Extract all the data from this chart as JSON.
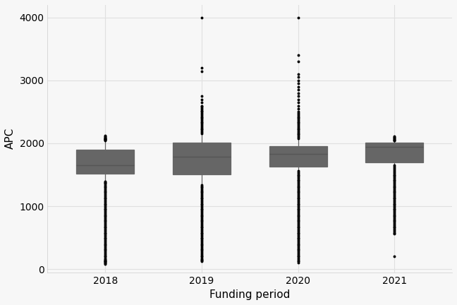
{
  "years": [
    "2018",
    "2019",
    "2020",
    "2021"
  ],
  "xlabel": "Funding period",
  "ylabel": "APC",
  "ylim": [
    -50,
    4200
  ],
  "yticks": [
    0,
    1000,
    2000,
    3000,
    4000
  ],
  "background_color": "#f7f7f7",
  "grid_color": "#e0e0e0",
  "box_color": "white",
  "box_edge_color": "#666666",
  "median_color": "#555555",
  "whisker_color": "#666666",
  "outlier_color": "black",
  "outlier_size": 1.8,
  "box_width": 0.6,
  "boxes": {
    "2018": {
      "q1": 1520,
      "median": 1655,
      "q3": 1900,
      "whislo": 1415,
      "whishi": 2050,
      "outliers": [
        1395,
        1385,
        1370,
        1355,
        1340,
        1320,
        1300,
        1280,
        1260,
        1240,
        1220,
        1200,
        1180,
        1160,
        1140,
        1120,
        1100,
        1080,
        1060,
        1040,
        1020,
        1000,
        980,
        960,
        940,
        920,
        900,
        880,
        860,
        840,
        820,
        800,
        780,
        760,
        740,
        720,
        700,
        680,
        660,
        640,
        620,
        600,
        580,
        560,
        540,
        520,
        500,
        480,
        460,
        440,
        420,
        400,
        380,
        360,
        340,
        320,
        300,
        280,
        260,
        240,
        220,
        200,
        180,
        160,
        150,
        140,
        130,
        120,
        110,
        100,
        90,
        80,
        2055,
        2060,
        2065,
        2070,
        2075,
        2080,
        2090,
        2100,
        2110,
        2120,
        2050
      ]
    },
    "2019": {
      "q1": 1510,
      "median": 1790,
      "q3": 2010,
      "whislo": 1360,
      "whishi": 2150,
      "outliers": [
        1340,
        1320,
        1300,
        1280,
        1260,
        1240,
        1220,
        1200,
        1180,
        1160,
        1140,
        1120,
        1100,
        1080,
        1060,
        1040,
        1020,
        1000,
        980,
        960,
        940,
        920,
        900,
        880,
        860,
        840,
        820,
        800,
        780,
        760,
        740,
        720,
        700,
        680,
        660,
        640,
        620,
        600,
        580,
        560,
        540,
        520,
        500,
        480,
        460,
        440,
        420,
        400,
        380,
        360,
        340,
        320,
        300,
        280,
        260,
        240,
        220,
        200,
        180,
        160,
        150,
        140,
        130,
        2160,
        2180,
        2200,
        2220,
        2240,
        2260,
        2280,
        2300,
        2320,
        2340,
        2360,
        2380,
        2400,
        2420,
        2440,
        2460,
        2480,
        2500,
        2520,
        2540,
        2560,
        2580,
        2600,
        2650,
        2700,
        2750,
        3150,
        3200,
        4000
      ]
    },
    "2020": {
      "q1": 1630,
      "median": 1830,
      "q3": 1960,
      "whislo": 1580,
      "whishi": 2070,
      "outliers": [
        1560,
        1540,
        1520,
        1500,
        1480,
        1460,
        1440,
        1420,
        1400,
        1380,
        1360,
        1340,
        1320,
        1300,
        1280,
        1260,
        1240,
        1220,
        1200,
        1180,
        1160,
        1140,
        1120,
        1100,
        1080,
        1060,
        1040,
        1020,
        1000,
        980,
        960,
        940,
        920,
        900,
        880,
        860,
        840,
        820,
        800,
        780,
        760,
        740,
        720,
        700,
        680,
        660,
        640,
        620,
        600,
        580,
        560,
        540,
        520,
        500,
        480,
        460,
        440,
        420,
        400,
        380,
        360,
        340,
        320,
        300,
        280,
        260,
        240,
        220,
        200,
        180,
        160,
        140,
        120,
        100,
        2080,
        2100,
        2120,
        2140,
        2160,
        2180,
        2200,
        2220,
        2240,
        2260,
        2280,
        2300,
        2320,
        2340,
        2360,
        2380,
        2400,
        2420,
        2440,
        2460,
        2480,
        2500,
        2550,
        2600,
        2650,
        2700,
        2750,
        2800,
        2850,
        2900,
        2950,
        3000,
        3050,
        3100,
        3300,
        3400,
        4000
      ]
    },
    "2021": {
      "q1": 1700,
      "median": 1940,
      "q3": 2010,
      "whislo": 1670,
      "whishi": 2040,
      "outliers": [
        1650,
        1630,
        1610,
        1590,
        1560,
        1540,
        1520,
        1500,
        1480,
        1460,
        1440,
        1420,
        1400,
        1380,
        1360,
        1340,
        1320,
        1300,
        1280,
        1260,
        1240,
        1220,
        1200,
        1180,
        1160,
        1140,
        1120,
        1100,
        1080,
        1060,
        1040,
        1020,
        1000,
        980,
        960,
        940,
        920,
        900,
        880,
        860,
        840,
        820,
        800,
        780,
        760,
        740,
        720,
        700,
        680,
        660,
        640,
        620,
        600,
        580,
        560,
        200,
        2045,
        2050,
        2060,
        2070,
        2080,
        2090,
        2100,
        2110
      ]
    }
  }
}
